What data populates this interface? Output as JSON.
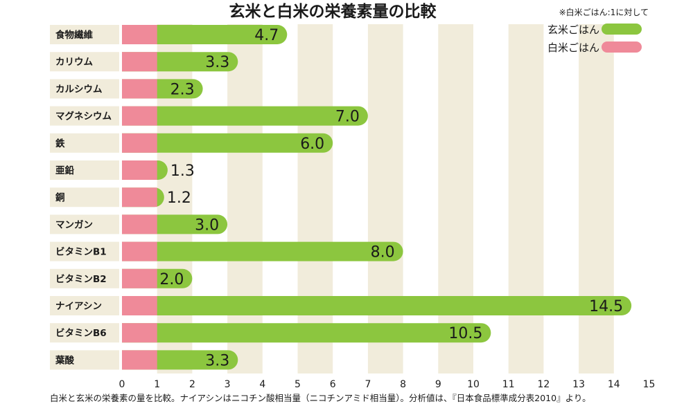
{
  "chart_data": {
    "type": "bar",
    "orientation": "horizontal",
    "title": "玄米と白米の栄養素量の比較",
    "note": "※白米ごはん:1に対して",
    "categories": [
      "食物繊維",
      "カリウム",
      "カルシウム",
      "マグネシウム",
      "鉄",
      "亜鉛",
      "銅",
      "マンガン",
      "ビタミンB1",
      "ビタミンB2",
      "ナイアシン",
      "ビタミンB6",
      "葉酸"
    ],
    "series": [
      {
        "name": "白米ごはん",
        "color": "#ef8a99",
        "values": [
          1,
          1,
          1,
          1,
          1,
          1,
          1,
          1,
          1,
          1,
          1,
          1,
          1
        ]
      },
      {
        "name": "玄米ごはん",
        "color": "#8cc63f",
        "values": [
          4.7,
          3.3,
          2.3,
          7.0,
          6.0,
          1.3,
          1.2,
          3.0,
          8.0,
          2.0,
          14.5,
          10.5,
          3.3
        ],
        "labels": [
          "4.7",
          "3.3",
          "2.3",
          "7.0",
          "6.0",
          "1.3",
          "1.2",
          "3.0",
          "8.0",
          "2.0",
          "14.5",
          "10.5",
          "3.3"
        ]
      }
    ],
    "xlim": [
      0,
      15
    ],
    "xticks": [
      "0",
      "1",
      "2",
      "3",
      "4",
      "5",
      "6",
      "7",
      "8",
      "9",
      "10",
      "11",
      "12",
      "13",
      "14",
      "15"
    ],
    "legend": "top-right",
    "grid": "alternating-column-bands",
    "band_color": "#f1ecdb",
    "footnote": "白米と玄米の栄養素の量を比較。ナイアシンはニコチン酸相当量（ニコチンアミド相当量）。分析値は、『日本食品標準成分表2010』より。"
  }
}
